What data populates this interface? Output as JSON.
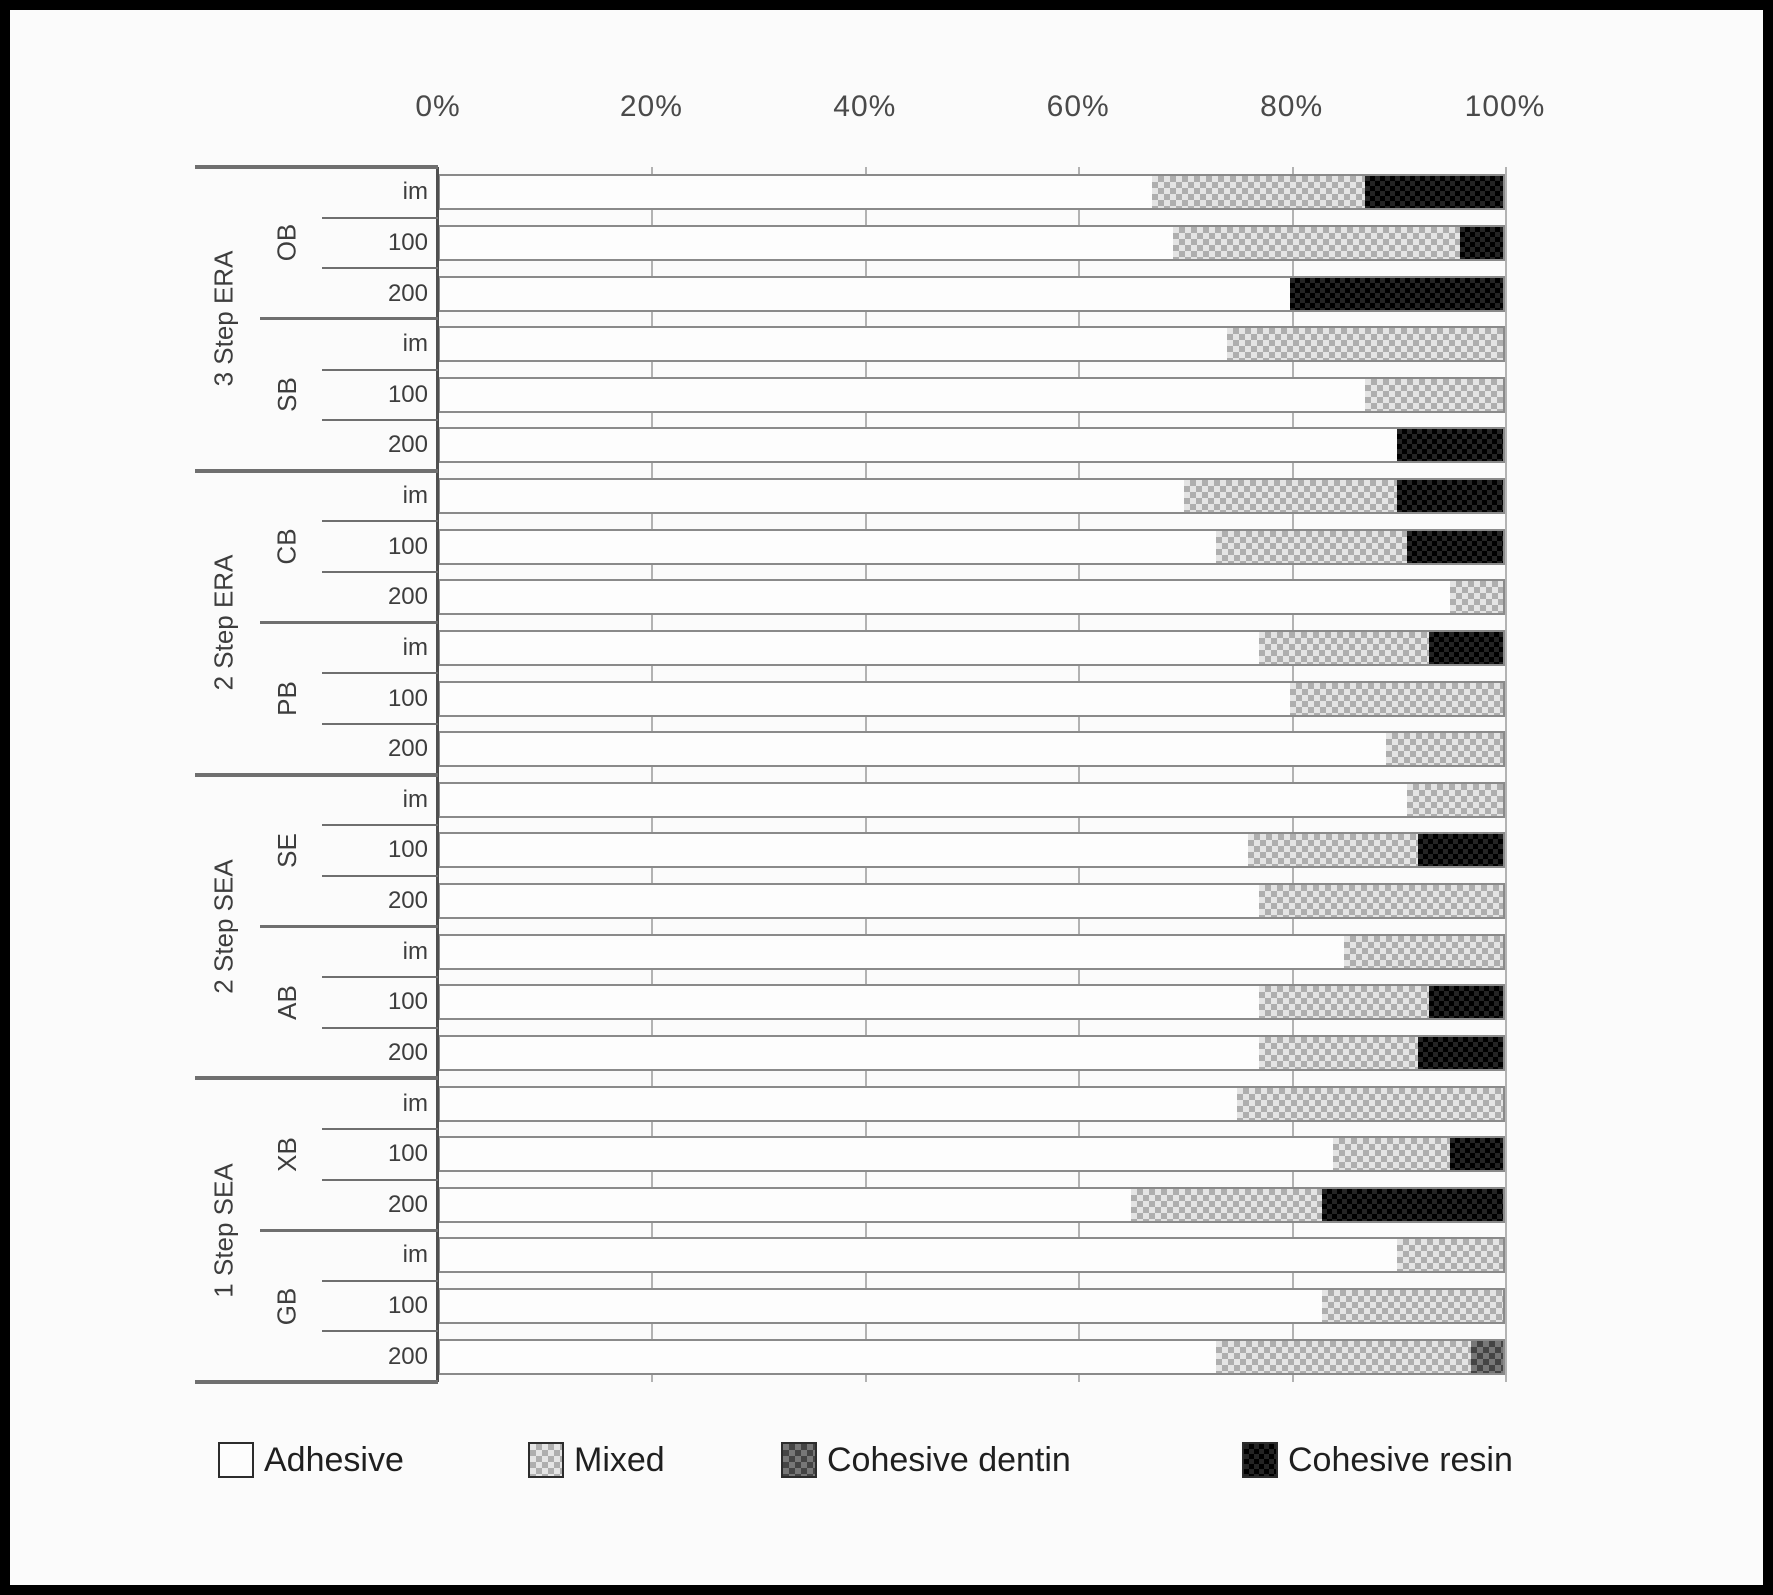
{
  "figure": {
    "background": "#fbfbfb",
    "frame_color": "#000000",
    "description_colors": {
      "grid": "#9a9a9a",
      "bar_border": "#8a8a8a",
      "text": "#3d3d3d",
      "adhesive_fill": "#fdfdfd",
      "mixed_fill": "#c9c9c9",
      "cohesive_dentin_fill": "#555555",
      "cohesive_resin_fill": "#111111"
    }
  },
  "chart_data": {
    "type": "bar",
    "orientation": "horizontal",
    "stacked": true,
    "percent_stacked": true,
    "title": "",
    "xlabel": "",
    "ylabel": "",
    "x_axis": {
      "position": "top",
      "range": [
        0,
        100
      ],
      "ticks": [
        "0%",
        "20%",
        "40%",
        "60%",
        "80%",
        "100%"
      ],
      "grid": true
    },
    "series_order": [
      "adhesive",
      "mixed",
      "cohesive_dentin",
      "cohesive_resin"
    ],
    "legend": [
      {
        "key": "adhesive",
        "label": "Adhesive",
        "pattern": "white-box"
      },
      {
        "key": "mixed",
        "label": "Mixed",
        "pattern": "light-checker"
      },
      {
        "key": "cohesive_dentin",
        "label": "Cohesive dentin",
        "pattern": "dark-checker"
      },
      {
        "key": "cohesive_resin",
        "label": "Cohesive resin",
        "pattern": "solid-black"
      }
    ],
    "groups": [
      {
        "label": "3 Step ERA",
        "subgroups": [
          {
            "label": "OB",
            "rows": [
              {
                "label": "im",
                "values": [
                  67,
                  20,
                  0,
                  13
                ]
              },
              {
                "label": "100",
                "values": [
                  69,
                  27,
                  0,
                  4
                ]
              },
              {
                "label": "200",
                "values": [
                  80,
                  0,
                  0,
                  20
                ]
              }
            ]
          },
          {
            "label": "SB",
            "rows": [
              {
                "label": "im",
                "values": [
                  74,
                  26,
                  0,
                  0
                ]
              },
              {
                "label": "100",
                "values": [
                  87,
                  13,
                  0,
                  0
                ]
              },
              {
                "label": "200",
                "values": [
                  90,
                  0,
                  0,
                  10
                ]
              }
            ]
          }
        ]
      },
      {
        "label": "2 Step ERA",
        "subgroups": [
          {
            "label": "CB",
            "rows": [
              {
                "label": "im",
                "values": [
                  70,
                  20,
                  0,
                  10
                ]
              },
              {
                "label": "100",
                "values": [
                  73,
                  18,
                  0,
                  9
                ]
              },
              {
                "label": "200",
                "values": [
                  95,
                  5,
                  0,
                  0
                ]
              }
            ]
          },
          {
            "label": "PB",
            "rows": [
              {
                "label": "im",
                "values": [
                  77,
                  16,
                  0,
                  7
                ]
              },
              {
                "label": "100",
                "values": [
                  80,
                  20,
                  0,
                  0
                ]
              },
              {
                "label": "200",
                "values": [
                  89,
                  11,
                  0,
                  0
                ]
              }
            ]
          }
        ]
      },
      {
        "label": "2 Step SEA",
        "subgroups": [
          {
            "label": "SE",
            "rows": [
              {
                "label": "im",
                "values": [
                  91,
                  9,
                  0,
                  0
                ]
              },
              {
                "label": "100",
                "values": [
                  76,
                  16,
                  0,
                  8
                ]
              },
              {
                "label": "200",
                "values": [
                  77,
                  23,
                  0,
                  0
                ]
              }
            ]
          },
          {
            "label": "AB",
            "rows": [
              {
                "label": "im",
                "values": [
                  85,
                  15,
                  0,
                  0
                ]
              },
              {
                "label": "100",
                "values": [
                  77,
                  16,
                  0,
                  7
                ]
              },
              {
                "label": "200",
                "values": [
                  77,
                  15,
                  0,
                  8
                ]
              }
            ]
          }
        ]
      },
      {
        "label": "1 Step SEA",
        "subgroups": [
          {
            "label": "XB",
            "rows": [
              {
                "label": "im",
                "values": [
                  75,
                  25,
                  0,
                  0
                ]
              },
              {
                "label": "100",
                "values": [
                  84,
                  11,
                  0,
                  5
                ]
              },
              {
                "label": "200",
                "values": [
                  65,
                  18,
                  0,
                  17
                ]
              }
            ]
          },
          {
            "label": "GB",
            "rows": [
              {
                "label": "im",
                "values": [
                  90,
                  10,
                  0,
                  0
                ]
              },
              {
                "label": "100",
                "values": [
                  83,
                  17,
                  0,
                  0
                ]
              },
              {
                "label": "200",
                "values": [
                  73,
                  24,
                  3,
                  0
                ]
              }
            ]
          }
        ]
      }
    ],
    "layout_hints": {
      "legend_position": "bottom",
      "category_levels": [
        "group",
        "adhesive-code",
        "aging-time"
      ],
      "bars_total": 24
    }
  }
}
